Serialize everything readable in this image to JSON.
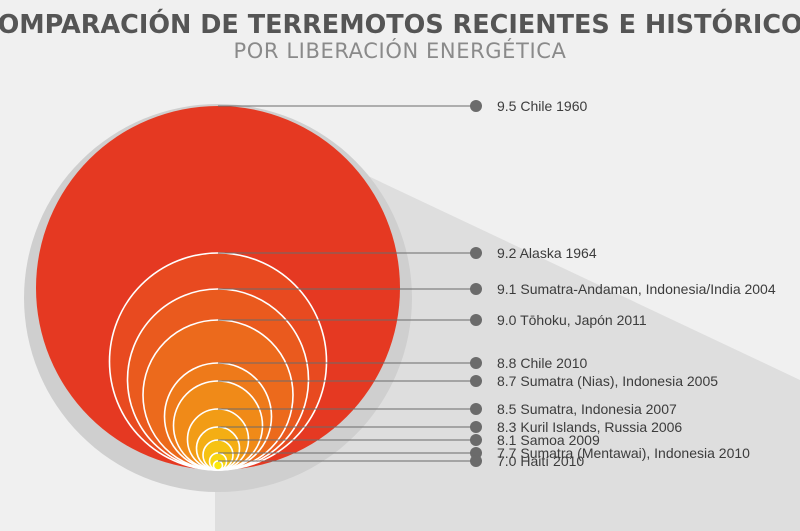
{
  "title": "COMPARACIÓN DE TERREMOTOS RECIENTES E HISTÓRICOS",
  "subtitle": "POR LIBERACIÓN ENERGÉTICA",
  "colors": {
    "background": "#f0f0f0",
    "title": "#555555",
    "subtitle": "#8a8a8a",
    "ring": "#cfcfcf",
    "leader": "#6b6b6b",
    "circle_stroke": "#ffffff"
  },
  "chart_data": {
    "type": "nested-circles",
    "measure": "magnitude",
    "items": [
      {
        "magnitude": 9.5,
        "label": "9.5 Chile 1960",
        "color": "#e53922"
      },
      {
        "magnitude": 9.2,
        "label": "9.2 Alaska 1964",
        "color": "#e84a20"
      },
      {
        "magnitude": 9.1,
        "label": "9.1 Sumatra-Andaman, Indonesia/India 2004",
        "color": "#ea5a1e"
      },
      {
        "magnitude": 9.0,
        "label": "9.0 Tōhoku, Japón 2011",
        "color": "#ec6a1c"
      },
      {
        "magnitude": 8.8,
        "label": "8.8 Chile 2010",
        "color": "#ee7a1a"
      },
      {
        "magnitude": 8.7,
        "label": "8.7 Sumatra (Nias), Indonesia 2005",
        "color": "#f08a18"
      },
      {
        "magnitude": 8.5,
        "label": "8.5 Sumatra, Indonesia 2007",
        "color": "#f29c16"
      },
      {
        "magnitude": 8.3,
        "label": "8.3 Kuril Islands, Russia 2006",
        "color": "#f4ae14"
      },
      {
        "magnitude": 8.1,
        "label": "8.1 Samoa 2009",
        "color": "#f6c212"
      },
      {
        "magnitude": 7.7,
        "label": "7.7 Sumatra (Mentawai), Indonesia 2010",
        "color": "#f8d610"
      },
      {
        "magnitude": 7.0,
        "label": "7.0 Haití 2010",
        "color": "#fbe80e"
      }
    ]
  }
}
